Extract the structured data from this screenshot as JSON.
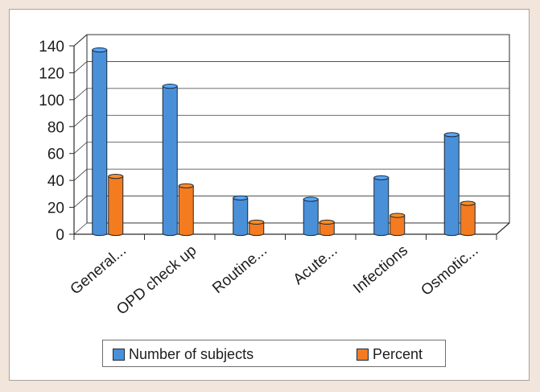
{
  "chart_data": {
    "type": "bar",
    "categories": [
      "General...",
      "OPD check up",
      "Routine...",
      "Acute...",
      "Infections",
      "Osmotic..."
    ],
    "series": [
      {
        "name": "Number of subjects",
        "values": [
          137,
          110,
          27,
          26,
          42,
          74
        ],
        "color": "#4a90d9"
      },
      {
        "name": "Percent",
        "values": [
          43,
          36,
          9,
          9,
          14,
          23
        ],
        "color": "#f47b20"
      }
    ],
    "yticks": [
      "0",
      "20",
      "40",
      "60",
      "80",
      "100",
      "120",
      "140"
    ],
    "ylim": [
      0,
      140
    ],
    "grid": true,
    "legend_position": "bottom",
    "style": "3d-cylinder"
  }
}
